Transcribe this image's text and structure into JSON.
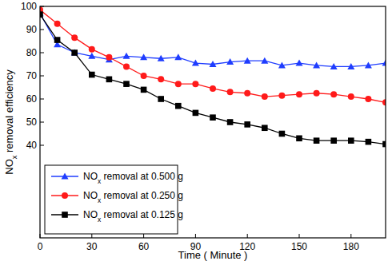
{
  "chart_data": {
    "type": "line",
    "x_label": "Time ( Minute )",
    "y_label": "NOx removal efficiency",
    "x": [
      0,
      10,
      20,
      30,
      40,
      50,
      60,
      70,
      80,
      90,
      100,
      110,
      120,
      130,
      140,
      150,
      160,
      170,
      180,
      190,
      200
    ],
    "series": [
      {
        "name": "NOx removal at 0.500 g",
        "color": "#1f3dff",
        "marker": "triangle",
        "line_style": "solid",
        "values": [
          97,
          83.5,
          80,
          78.5,
          77,
          78.5,
          78,
          77.5,
          78,
          75.5,
          75,
          76,
          76.5,
          76.5,
          74.5,
          75.5,
          74.5,
          74,
          74,
          74.5,
          75.5
        ]
      },
      {
        "name": "NOx removal at 0.250 g",
        "color": "#ff1a1a",
        "marker": "circle",
        "line_style": "solid",
        "values": [
          98.5,
          92.5,
          86.5,
          81.5,
          78,
          74,
          70,
          68.5,
          66.5,
          66.5,
          64.5,
          63,
          62.5,
          61,
          61.5,
          62,
          62.5,
          62,
          61,
          60,
          58.5
        ]
      },
      {
        "name": "NOx removal at 0.125 g",
        "color": "#000000",
        "marker": "square",
        "line_style": "solid",
        "values": [
          96.5,
          85.5,
          80,
          70.5,
          68.5,
          66.5,
          64,
          60,
          57,
          54,
          52,
          50,
          49,
          47.5,
          45,
          43,
          42,
          42,
          42,
          41.5,
          40.5
        ]
      }
    ],
    "xlim": [
      0,
      200
    ],
    "ylim": [
      0,
      100
    ],
    "xticks": [
      0,
      30,
      60,
      90,
      120,
      150,
      180
    ],
    "yticks": [
      40,
      50,
      60,
      70,
      80,
      90,
      100
    ],
    "grid": false,
    "legend": "lower left"
  }
}
